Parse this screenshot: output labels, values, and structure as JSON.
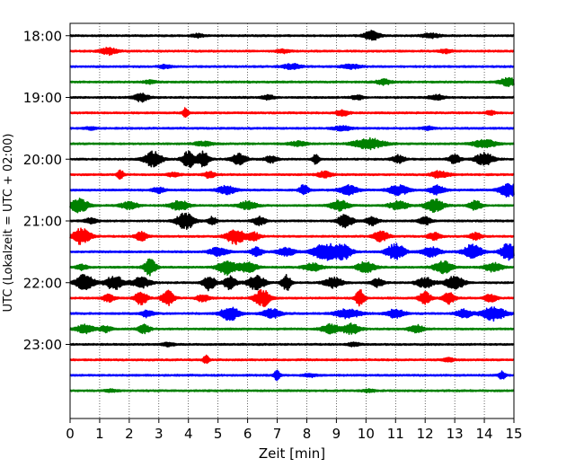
{
  "chart_data": {
    "type": "line",
    "title": "",
    "xlabel": "Zeit  [min]",
    "ylabel": "UTC (Lokalzeit = UTC + 02:00)",
    "xlim": [
      0,
      15
    ],
    "x_ticks": [
      0,
      1,
      2,
      3,
      4,
      5,
      6,
      7,
      8,
      9,
      10,
      11,
      12,
      13,
      14,
      15
    ],
    "y_tick_labels": [
      "18:00",
      "19:00",
      "20:00",
      "21:00",
      "22:00",
      "23:00"
    ],
    "y_tick_positions_hours": [
      18,
      19,
      20,
      21,
      22,
      23
    ],
    "ylim_hours": [
      17.8,
      24.2
    ],
    "trace_interval_minutes": 15,
    "trace_colors": [
      "#000000",
      "#ff0000",
      "#0000ff",
      "#008000"
    ],
    "grid": "vertical-dotted",
    "traces": [
      {
        "start": "18:00",
        "bursts": [
          [
            10.2,
            0.25,
            0.55
          ],
          [
            12.2,
            0.3,
            0.25
          ],
          [
            4.3,
            0.2,
            0.2
          ]
        ]
      },
      {
        "start": "18:15",
        "bursts": [
          [
            1.3,
            0.3,
            0.4
          ],
          [
            7.2,
            0.2,
            0.2
          ],
          [
            12.7,
            0.2,
            0.2
          ]
        ]
      },
      {
        "start": "18:30",
        "bursts": [
          [
            7.5,
            0.3,
            0.3
          ],
          [
            9.5,
            0.3,
            0.25
          ],
          [
            3.2,
            0.2,
            0.2
          ]
        ]
      },
      {
        "start": "18:45",
        "bursts": [
          [
            14.8,
            0.3,
            0.45
          ],
          [
            10.6,
            0.25,
            0.3
          ],
          [
            2.7,
            0.2,
            0.2
          ]
        ]
      },
      {
        "start": "19:00",
        "bursts": [
          [
            2.4,
            0.25,
            0.45
          ],
          [
            6.7,
            0.2,
            0.25
          ],
          [
            9.7,
            0.2,
            0.25
          ],
          [
            12.4,
            0.25,
            0.3
          ]
        ]
      },
      {
        "start": "19:15",
        "bursts": [
          [
            3.9,
            0.1,
            0.55
          ],
          [
            9.2,
            0.2,
            0.35
          ],
          [
            14.2,
            0.15,
            0.25
          ]
        ]
      },
      {
        "start": "19:30",
        "bursts": [
          [
            9.2,
            0.3,
            0.25
          ],
          [
            12.1,
            0.2,
            0.2
          ],
          [
            0.7,
            0.2,
            0.15
          ]
        ]
      },
      {
        "start": "19:45",
        "bursts": [
          [
            10.1,
            0.5,
            0.6
          ],
          [
            14.0,
            0.4,
            0.45
          ],
          [
            4.5,
            0.3,
            0.25
          ],
          [
            7.7,
            0.3,
            0.25
          ]
        ]
      },
      {
        "start": "20:00",
        "bursts": [
          [
            2.8,
            0.3,
            0.9
          ],
          [
            4.0,
            0.2,
            1.0
          ],
          [
            4.5,
            0.2,
            0.9
          ],
          [
            5.7,
            0.25,
            0.6
          ],
          [
            8.3,
            0.1,
            0.6
          ],
          [
            11.1,
            0.2,
            0.45
          ],
          [
            13.0,
            0.2,
            0.5
          ],
          [
            14.0,
            0.3,
            0.7
          ],
          [
            6.8,
            0.2,
            0.4
          ]
        ]
      },
      {
        "start": "20:15",
        "bursts": [
          [
            1.7,
            0.1,
            0.6
          ],
          [
            4.7,
            0.2,
            0.35
          ],
          [
            8.6,
            0.25,
            0.35
          ],
          [
            12.5,
            0.3,
            0.4
          ],
          [
            3.5,
            0.2,
            0.25
          ]
        ]
      },
      {
        "start": "20:30",
        "bursts": [
          [
            7.9,
            0.15,
            0.6
          ],
          [
            9.4,
            0.3,
            0.55
          ],
          [
            11.1,
            0.35,
            0.55
          ],
          [
            12.4,
            0.25,
            0.5
          ],
          [
            14.8,
            0.3,
            0.8
          ],
          [
            5.3,
            0.3,
            0.5
          ],
          [
            3.0,
            0.2,
            0.35
          ]
        ]
      },
      {
        "start": "20:45",
        "bursts": [
          [
            0.3,
            0.3,
            0.8
          ],
          [
            3.7,
            0.3,
            0.6
          ],
          [
            6.0,
            0.3,
            0.5
          ],
          [
            9.1,
            0.3,
            0.6
          ],
          [
            11.1,
            0.3,
            0.5
          ],
          [
            12.3,
            0.3,
            0.75
          ],
          [
            13.7,
            0.2,
            0.55
          ],
          [
            2.0,
            0.3,
            0.4
          ]
        ]
      },
      {
        "start": "21:00",
        "bursts": [
          [
            3.9,
            0.3,
            0.95
          ],
          [
            4.8,
            0.15,
            0.45
          ],
          [
            6.4,
            0.2,
            0.5
          ],
          [
            9.3,
            0.25,
            0.75
          ],
          [
            10.2,
            0.2,
            0.5
          ],
          [
            12.0,
            0.2,
            0.45
          ],
          [
            0.7,
            0.2,
            0.3
          ]
        ]
      },
      {
        "start": "21:15",
        "bursts": [
          [
            0.4,
            0.3,
            0.95
          ],
          [
            2.4,
            0.2,
            0.5
          ],
          [
            5.6,
            0.3,
            0.9
          ],
          [
            6.2,
            0.2,
            0.5
          ],
          [
            10.5,
            0.25,
            0.6
          ],
          [
            12.3,
            0.2,
            0.45
          ],
          [
            13.7,
            0.2,
            0.4
          ]
        ]
      },
      {
        "start": "21:30",
        "bursts": [
          [
            5.0,
            0.3,
            0.5
          ],
          [
            6.3,
            0.2,
            0.5
          ],
          [
            8.6,
            0.4,
            0.95
          ],
          [
            9.2,
            0.3,
            1.0
          ],
          [
            11.0,
            0.3,
            0.95
          ],
          [
            13.6,
            0.3,
            0.9
          ],
          [
            14.8,
            0.25,
            0.95
          ],
          [
            7.3,
            0.3,
            0.45
          ],
          [
            12.2,
            0.3,
            0.55
          ]
        ]
      },
      {
        "start": "21:45",
        "bursts": [
          [
            2.7,
            0.2,
            0.95
          ],
          [
            5.3,
            0.3,
            0.85
          ],
          [
            6.0,
            0.3,
            0.6
          ],
          [
            10.0,
            0.3,
            0.65
          ],
          [
            12.6,
            0.3,
            0.7
          ],
          [
            14.3,
            0.3,
            0.5
          ],
          [
            8.2,
            0.3,
            0.45
          ],
          [
            0.4,
            0.2,
            0.3
          ]
        ]
      },
      {
        "start": "22:00",
        "bursts": [
          [
            0.5,
            0.3,
            0.95
          ],
          [
            1.5,
            0.3,
            0.8
          ],
          [
            2.4,
            0.3,
            0.6
          ],
          [
            4.7,
            0.2,
            0.85
          ],
          [
            5.4,
            0.2,
            0.8
          ],
          [
            6.3,
            0.3,
            0.8
          ],
          [
            7.3,
            0.15,
            1.0
          ],
          [
            8.9,
            0.3,
            0.6
          ],
          [
            10.4,
            0.2,
            0.5
          ],
          [
            13.0,
            0.3,
            0.85
          ],
          [
            12.0,
            0.3,
            0.55
          ]
        ]
      },
      {
        "start": "22:15",
        "bursts": [
          [
            2.4,
            0.2,
            0.8
          ],
          [
            3.3,
            0.2,
            0.9
          ],
          [
            6.5,
            0.25,
            1.0
          ],
          [
            9.8,
            0.15,
            1.0
          ],
          [
            12.0,
            0.2,
            0.7
          ],
          [
            12.8,
            0.2,
            0.7
          ],
          [
            14.2,
            0.2,
            0.5
          ],
          [
            1.3,
            0.2,
            0.4
          ],
          [
            4.5,
            0.2,
            0.45
          ]
        ]
      },
      {
        "start": "22:30",
        "bursts": [
          [
            5.4,
            0.3,
            0.8
          ],
          [
            6.8,
            0.3,
            0.55
          ],
          [
            9.4,
            0.4,
            0.55
          ],
          [
            11.0,
            0.3,
            0.5
          ],
          [
            14.3,
            0.4,
            0.8
          ],
          [
            13.3,
            0.25,
            0.5
          ],
          [
            2.6,
            0.2,
            0.4
          ]
        ]
      },
      {
        "start": "22:45",
        "bursts": [
          [
            0.5,
            0.3,
            0.5
          ],
          [
            2.5,
            0.2,
            0.5
          ],
          [
            8.8,
            0.3,
            0.55
          ],
          [
            9.5,
            0.3,
            0.6
          ],
          [
            11.7,
            0.25,
            0.45
          ],
          [
            1.2,
            0.2,
            0.35
          ]
        ]
      },
      {
        "start": "23:00",
        "bursts": [
          [
            3.3,
            0.2,
            0.2
          ],
          [
            9.6,
            0.2,
            0.2
          ]
        ]
      },
      {
        "start": "23:15",
        "bursts": [
          [
            4.6,
            0.1,
            0.45
          ],
          [
            12.8,
            0.2,
            0.2
          ]
        ]
      },
      {
        "start": "23:30",
        "bursts": [
          [
            7.0,
            0.1,
            0.6
          ],
          [
            14.6,
            0.1,
            0.55
          ],
          [
            8.1,
            0.2,
            0.2
          ]
        ]
      },
      {
        "start": "23:45",
        "bursts": [
          [
            1.4,
            0.2,
            0.15
          ],
          [
            10.1,
            0.2,
            0.15
          ]
        ]
      }
    ]
  }
}
